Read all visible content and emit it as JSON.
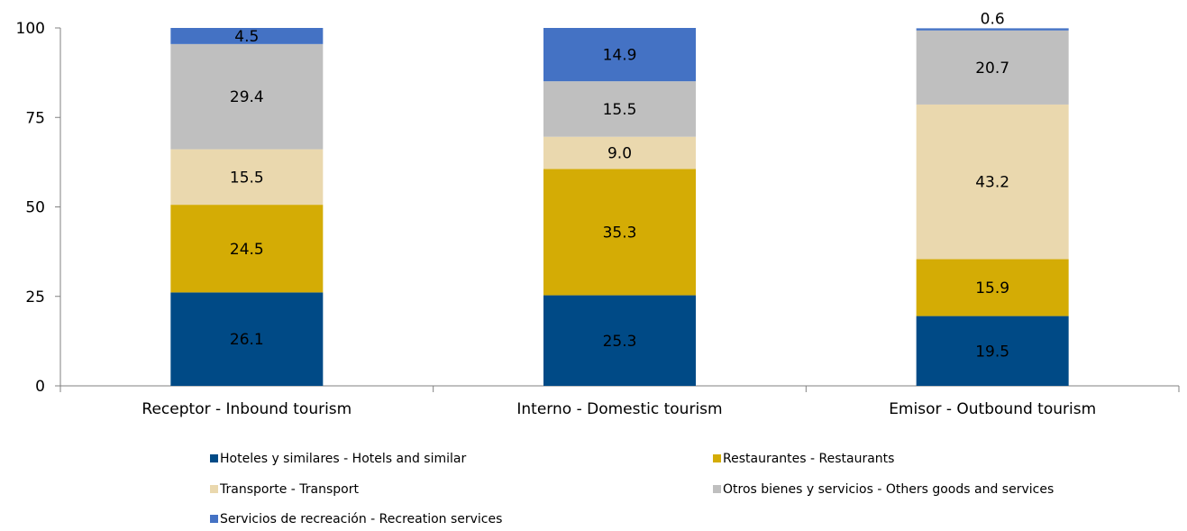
{
  "chart_data": {
    "type": "bar",
    "stacked": true,
    "categories": [
      "Receptor - Inbound tourism",
      "Interno - Domestic tourism",
      "Emisor - Outbound tourism"
    ],
    "series": [
      {
        "name": "Hoteles y similares - Hotels and similar",
        "color": "#004A86",
        "values": [
          26.1,
          25.3,
          19.5
        ],
        "labels": [
          "26.1",
          "25.3",
          "19.5"
        ]
      },
      {
        "name": "Restaurantes - Restaurants",
        "color": "#D4AC05",
        "values": [
          24.5,
          35.3,
          15.9
        ],
        "labels": [
          "24.5",
          "35.3",
          "15.9"
        ]
      },
      {
        "name": "Transporte - Transport",
        "color": "#EAD8AE",
        "values": [
          15.5,
          9.0,
          43.2
        ],
        "labels": [
          "15.5",
          "9.0",
          "43.2"
        ]
      },
      {
        "name": "Otros bienes y servicios - Others goods and services",
        "color": "#BFBFBF",
        "values": [
          29.4,
          15.5,
          20.7
        ],
        "labels": [
          "29.4",
          "15.5",
          "20.7"
        ]
      },
      {
        "name": "Servicios de recreación - Recreation services",
        "color": "#4472C4",
        "values": [
          4.5,
          14.9,
          0.6
        ],
        "labels": [
          "4.5",
          "14.9",
          "0.6"
        ]
      }
    ],
    "ylim": [
      0,
      100
    ],
    "yticks": [
      "0",
      "25",
      "50",
      "75",
      "100"
    ],
    "legend_position": "bottom",
    "grid": false
  }
}
